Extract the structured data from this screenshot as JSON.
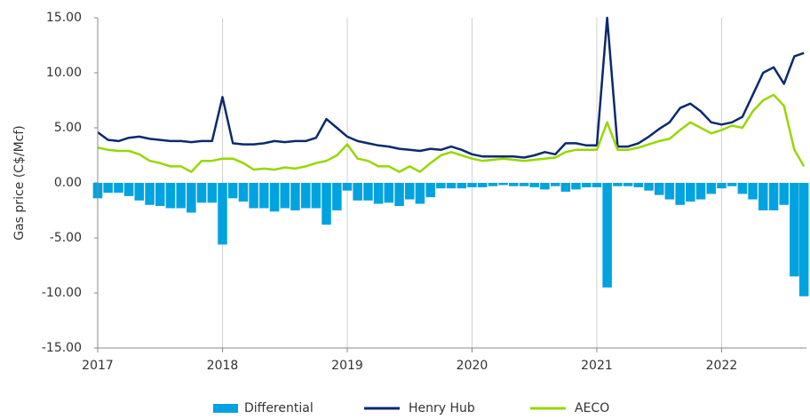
{
  "chart_data": {
    "type": "combo",
    "y_label": "Gas price (C$/Mcf)",
    "x": [
      2017,
      2017.083,
      2017.167,
      2017.25,
      2017.333,
      2017.417,
      2017.5,
      2017.583,
      2017.667,
      2017.75,
      2017.833,
      2017.917,
      2018,
      2018.083,
      2018.167,
      2018.25,
      2018.333,
      2018.417,
      2018.5,
      2018.583,
      2018.667,
      2018.75,
      2018.833,
      2018.917,
      2019,
      2019.083,
      2019.167,
      2019.25,
      2019.333,
      2019.417,
      2019.5,
      2019.583,
      2019.667,
      2019.75,
      2019.833,
      2019.917,
      2020,
      2020.083,
      2020.167,
      2020.25,
      2020.333,
      2020.417,
      2020.5,
      2020.583,
      2020.667,
      2020.75,
      2020.833,
      2020.917,
      2021,
      2021.083,
      2021.167,
      2021.25,
      2021.333,
      2021.417,
      2021.5,
      2021.583,
      2021.667,
      2021.75,
      2021.833,
      2021.917,
      2022,
      2022.083,
      2022.167,
      2022.25,
      2022.333,
      2022.417,
      2022.5,
      2022.583,
      2022.66
    ],
    "series": [
      {
        "name": "Differential",
        "type": "bar",
        "color": "#00a3e0",
        "values": [
          -1.4,
          -0.9,
          -0.9,
          -1.2,
          -1.6,
          -2.0,
          -2.1,
          -2.3,
          -2.3,
          -2.7,
          -1.8,
          -1.8,
          -5.6,
          -1.4,
          -1.7,
          -2.3,
          -2.3,
          -2.6,
          -2.3,
          -2.5,
          -2.3,
          -2.3,
          -3.8,
          -2.5,
          -0.7,
          -1.6,
          -1.6,
          -1.9,
          -1.8,
          -2.1,
          -1.5,
          -1.9,
          -1.3,
          -0.5,
          -0.5,
          -0.5,
          -0.4,
          -0.4,
          -0.3,
          -0.2,
          -0.3,
          -0.3,
          -0.4,
          -0.6,
          -0.3,
          -0.8,
          -0.6,
          -0.4,
          -0.4,
          -9.5,
          -0.3,
          -0.3,
          -0.4,
          -0.7,
          -1.1,
          -1.5,
          -2.0,
          -1.7,
          -1.5,
          -1.0,
          -0.5,
          -0.3,
          -1.0,
          -1.5,
          -2.5,
          -2.5,
          -2.0,
          -8.5,
          -10.3
        ]
      },
      {
        "name": "Henry Hub",
        "type": "line",
        "color": "#0a2a6e",
        "values": [
          4.6,
          3.9,
          3.8,
          4.1,
          4.2,
          4.0,
          3.9,
          3.8,
          3.8,
          3.7,
          3.8,
          3.8,
          7.8,
          3.6,
          3.5,
          3.5,
          3.6,
          3.8,
          3.7,
          3.8,
          3.8,
          4.1,
          5.8,
          5.0,
          4.2,
          3.8,
          3.6,
          3.4,
          3.3,
          3.1,
          3.0,
          2.9,
          3.1,
          3.0,
          3.3,
          3.0,
          2.6,
          2.4,
          2.4,
          2.4,
          2.4,
          2.3,
          2.5,
          2.8,
          2.6,
          3.6,
          3.6,
          3.4,
          3.4,
          15,
          3.3,
          3.3,
          3.6,
          4.2,
          4.9,
          5.5,
          6.8,
          7.2,
          6.5,
          5.5,
          5.3,
          5.5,
          6.0,
          8.0,
          10.0,
          10.5,
          9.0,
          11.5,
          11.8
        ]
      },
      {
        "name": "AECO",
        "type": "line",
        "color": "#97d700",
        "values": [
          3.2,
          3.0,
          2.9,
          2.9,
          2.6,
          2.0,
          1.8,
          1.5,
          1.5,
          1.0,
          2.0,
          2.0,
          2.2,
          2.2,
          1.8,
          1.2,
          1.3,
          1.2,
          1.4,
          1.3,
          1.5,
          1.8,
          2.0,
          2.5,
          3.5,
          2.2,
          2.0,
          1.5,
          1.5,
          1.0,
          1.5,
          1.0,
          1.8,
          2.5,
          2.8,
          2.5,
          2.2,
          2.0,
          2.1,
          2.2,
          2.1,
          2.0,
          2.1,
          2.2,
          2.3,
          2.8,
          3.0,
          3.0,
          3.0,
          5.5,
          3.0,
          3.0,
          3.2,
          3.5,
          3.8,
          4.0,
          4.8,
          5.5,
          5.0,
          4.5,
          4.8,
          5.2,
          5.0,
          6.5,
          7.5,
          8.0,
          7.0,
          3.0,
          1.5
        ]
      }
    ],
    "xlim": [
      2017,
      2022.68
    ],
    "xticks": [
      2017,
      2018,
      2019,
      2020,
      2021,
      2022
    ],
    "ylim": [
      -15,
      15
    ],
    "yticks": [
      {
        "value": -15,
        "label": "-15.00"
      },
      {
        "value": -10,
        "label": "-10.00"
      },
      {
        "value": -5,
        "label": "-5.00"
      },
      {
        "value": 0,
        "label": "0.00"
      },
      {
        "value": 5,
        "label": "5.00"
      },
      {
        "value": 10,
        "label": "10.00"
      },
      {
        "value": 15,
        "label": "15.00"
      }
    ],
    "grid": true,
    "legend": "bottom"
  }
}
